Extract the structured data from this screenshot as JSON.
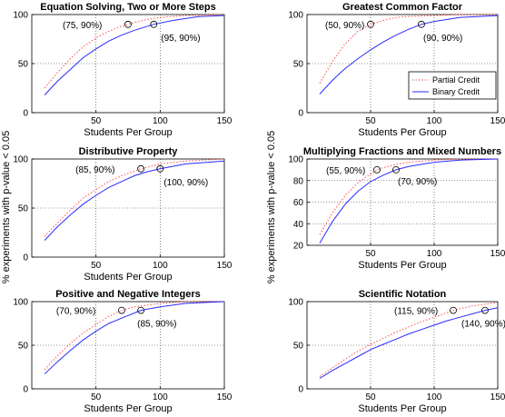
{
  "figure": {
    "ylabel_shared": "% experiments with p-value < 0.05",
    "colors": {
      "partial": "#ff4d4d",
      "binary": "#2a2aff",
      "grid": "#333333"
    },
    "legend": {
      "placement": "bottom-right of Greatest Common Factor panel",
      "items": [
        "Partial Credit",
        "Binary Credit"
      ]
    }
  },
  "chart_data": [
    {
      "type": "line",
      "title": "Equation Solving, Two or More Steps",
      "xlabel": "Students Per Group",
      "xlim": [
        0,
        150
      ],
      "ylim": [
        0,
        100
      ],
      "xticks": [
        "50",
        "100",
        "150"
      ],
      "yticks": [
        "0",
        "50",
        "100"
      ],
      "grid": true,
      "series": [
        {
          "name": "Partial Credit",
          "style": "dotted",
          "x": [
            10,
            20,
            30,
            40,
            50,
            60,
            70,
            75,
            80,
            90,
            100,
            120,
            150
          ],
          "y": [
            25,
            41,
            55,
            67,
            76,
            83,
            88,
            90,
            92,
            95,
            97,
            99,
            100
          ]
        },
        {
          "name": "Binary Credit",
          "style": "solid",
          "x": [
            10,
            20,
            30,
            40,
            50,
            60,
            70,
            80,
            95,
            110,
            130,
            150
          ],
          "y": [
            18,
            32,
            44,
            56,
            65,
            73,
            79,
            84,
            90,
            94,
            98,
            99
          ]
        }
      ],
      "annotations": [
        "(75, 90%)",
        "(95, 90%)"
      ],
      "markers": [
        {
          "x": 75,
          "y": 90
        },
        {
          "x": 95,
          "y": 90
        }
      ]
    },
    {
      "type": "line",
      "title": "Greatest Common Factor",
      "xlabel": "Students Per Group",
      "xlim": [
        0,
        150
      ],
      "ylim": [
        0,
        100
      ],
      "xticks": [
        "50",
        "100",
        "150"
      ],
      "yticks": [
        "0",
        "50",
        "100"
      ],
      "grid": true,
      "series": [
        {
          "name": "Partial Credit",
          "style": "dotted",
          "x": [
            10,
            20,
            30,
            40,
            50,
            60,
            70,
            80,
            100,
            120,
            150
          ],
          "y": [
            30,
            52,
            70,
            83,
            90,
            94,
            97,
            98,
            99,
            100,
            100
          ]
        },
        {
          "name": "Binary Credit",
          "style": "solid",
          "x": [
            10,
            20,
            30,
            40,
            50,
            60,
            70,
            80,
            90,
            100,
            120,
            150
          ],
          "y": [
            19,
            33,
            45,
            55,
            64,
            72,
            79,
            85,
            90,
            93,
            97,
            99
          ]
        }
      ],
      "annotations": [
        "(50, 90%)",
        "(90, 90%)"
      ],
      "markers": [
        {
          "x": 50,
          "y": 90
        },
        {
          "x": 90,
          "y": 90
        }
      ]
    },
    {
      "type": "line",
      "title": "Distributive Property",
      "xlabel": "Students Per Group",
      "xlim": [
        0,
        150
      ],
      "ylim": [
        0,
        100
      ],
      "xticks": [
        "50",
        "100",
        "150"
      ],
      "yticks": [
        "0",
        "50",
        "100"
      ],
      "grid": true,
      "series": [
        {
          "name": "Partial Credit",
          "style": "dotted",
          "x": [
            10,
            20,
            30,
            40,
            50,
            60,
            70,
            85,
            100,
            120,
            150
          ],
          "y": [
            21,
            35,
            48,
            60,
            69,
            77,
            83,
            90,
            95,
            98,
            100
          ]
        },
        {
          "name": "Binary Credit",
          "style": "solid",
          "x": [
            10,
            20,
            30,
            40,
            50,
            60,
            70,
            80,
            90,
            100,
            120,
            150
          ],
          "y": [
            17,
            31,
            43,
            54,
            63,
            71,
            77,
            83,
            87,
            90,
            95,
            98
          ]
        }
      ],
      "annotations": [
        "(85, 90%)",
        "(100, 90%)"
      ],
      "markers": [
        {
          "x": 85,
          "y": 90
        },
        {
          "x": 100,
          "y": 90
        }
      ]
    },
    {
      "type": "line",
      "title": "Multiplying Fractions and Mixed Numbers",
      "xlabel": "Students Per Group",
      "xlim": [
        0,
        150
      ],
      "ylim": [
        20,
        100
      ],
      "xticks": [
        "50",
        "100",
        "150"
      ],
      "yticks": [
        "20",
        "40",
        "60",
        "80",
        "100"
      ],
      "grid": true,
      "series": [
        {
          "name": "Partial Credit",
          "style": "dotted",
          "x": [
            10,
            20,
            30,
            40,
            50,
            55,
            60,
            70,
            80,
            100,
            120,
            150
          ],
          "y": [
            30,
            50,
            66,
            78,
            86,
            90,
            92,
            95,
            97,
            99,
            100,
            100
          ]
        },
        {
          "name": "Binary Credit",
          "style": "solid",
          "x": [
            10,
            20,
            30,
            40,
            50,
            60,
            70,
            80,
            90,
            100,
            120,
            150
          ],
          "y": [
            22,
            42,
            58,
            70,
            79,
            85,
            90,
            93,
            95,
            97,
            99,
            100
          ]
        }
      ],
      "annotations": [
        "(55, 90%)",
        "(70, 90%)"
      ],
      "markers": [
        {
          "x": 55,
          "y": 90
        },
        {
          "x": 70,
          "y": 90
        }
      ]
    },
    {
      "type": "line",
      "title": "Positive and Negative Integers",
      "xlabel": "Students Per Group",
      "xlim": [
        0,
        150
      ],
      "ylim": [
        0,
        100
      ],
      "xticks": [
        "50",
        "100",
        "150"
      ],
      "yticks": [
        "0",
        "50",
        "100"
      ],
      "grid": true,
      "series": [
        {
          "name": "Partial Credit",
          "style": "dotted",
          "x": [
            10,
            20,
            30,
            40,
            50,
            60,
            70,
            80,
            100,
            120,
            150
          ],
          "y": [
            22,
            38,
            52,
            64,
            74,
            83,
            90,
            94,
            98,
            100,
            100
          ]
        },
        {
          "name": "Binary Credit",
          "style": "solid",
          "x": [
            10,
            20,
            30,
            40,
            50,
            60,
            70,
            85,
            100,
            120,
            150
          ],
          "y": [
            17,
            31,
            44,
            56,
            66,
            75,
            81,
            90,
            94,
            98,
            100
          ]
        }
      ],
      "annotations": [
        "(70, 90%)",
        "(85, 90%)"
      ],
      "markers": [
        {
          "x": 70,
          "y": 90
        },
        {
          "x": 85,
          "y": 90
        }
      ]
    },
    {
      "type": "line",
      "title": "Scientific Notation",
      "xlabel": "Students Per Group",
      "xlim": [
        0,
        150
      ],
      "ylim": [
        0,
        100
      ],
      "xticks": [
        "50",
        "100",
        "150"
      ],
      "yticks": [
        "0",
        "50",
        "100"
      ],
      "grid": true,
      "series": [
        {
          "name": "Partial Credit",
          "style": "dotted",
          "x": [
            10,
            20,
            30,
            40,
            50,
            60,
            70,
            80,
            90,
            100,
            115,
            130,
            150
          ],
          "y": [
            14,
            24,
            34,
            43,
            51,
            58,
            65,
            71,
            77,
            82,
            90,
            95,
            99
          ]
        },
        {
          "name": "Binary Credit",
          "style": "solid",
          "x": [
            10,
            20,
            30,
            40,
            50,
            60,
            70,
            80,
            90,
            100,
            110,
            120,
            140,
            150
          ],
          "y": [
            12,
            21,
            29,
            37,
            45,
            51,
            57,
            63,
            68,
            73,
            78,
            82,
            90,
            93
          ]
        }
      ],
      "annotations": [
        "(115, 90%)",
        "(140, 90%)"
      ],
      "markers": [
        {
          "x": 115,
          "y": 90
        },
        {
          "x": 140,
          "y": 90
        }
      ]
    }
  ]
}
